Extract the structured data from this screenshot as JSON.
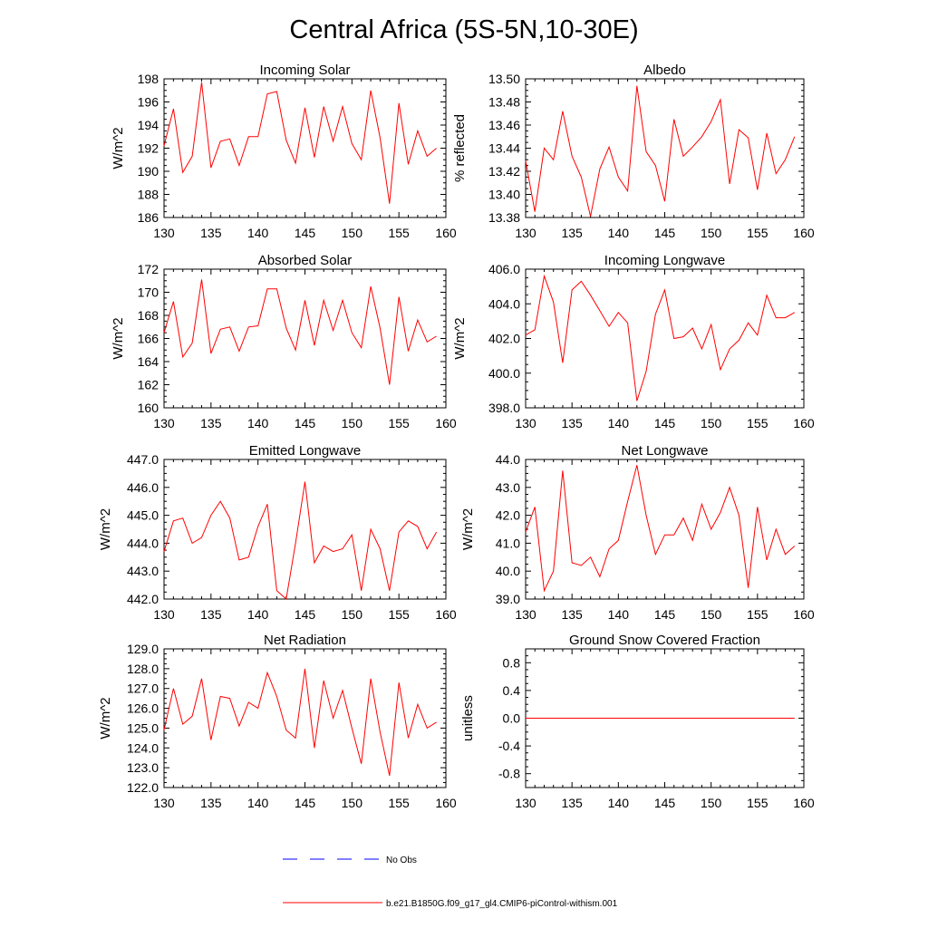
{
  "figure": {
    "title": "Central Africa (5S-5N,10-30E)",
    "series_color": "#ff0000",
    "noobs_color": "#0000ff",
    "legend": [
      {
        "label": "No Obs",
        "style": "dashed",
        "color": "#0000ff"
      },
      {
        "label": "b.e21.B1850G.f09_g17_gl4.CMIP6-piControl-withism.001",
        "style": "solid",
        "color": "#ff0000"
      }
    ]
  },
  "chart_data": [
    {
      "type": "line",
      "title": "Incoming Solar",
      "xlabel": "",
      "ylabel": "W/m^2",
      "xlim": [
        130,
        160
      ],
      "ylim": [
        186,
        198
      ],
      "xticks": [
        "130",
        "135",
        "140",
        "145",
        "150",
        "155",
        "160"
      ],
      "yticks": [
        "186",
        "188",
        "190",
        "192",
        "194",
        "196",
        "198"
      ],
      "x": [
        130,
        131,
        132,
        133,
        134,
        135,
        136,
        137,
        138,
        139,
        140,
        141,
        142,
        143,
        144,
        145,
        146,
        147,
        148,
        149,
        150,
        151,
        152,
        153,
        154,
        155,
        156,
        157,
        158,
        159
      ],
      "y": [
        192.2,
        195.4,
        189.9,
        191.3,
        197.7,
        190.3,
        192.6,
        192.8,
        190.5,
        193.0,
        193.0,
        196.7,
        196.9,
        192.7,
        190.7,
        195.5,
        191.2,
        195.6,
        192.6,
        195.6,
        192.4,
        191.0,
        197.0,
        192.9,
        187.2,
        195.9,
        190.6,
        193.5,
        191.3,
        192.0
      ],
      "grid": false,
      "legend": "none"
    },
    {
      "type": "line",
      "title": "Albedo",
      "xlabel": "",
      "ylabel": "% reflected",
      "xlim": [
        130,
        160
      ],
      "ylim": [
        13.38,
        13.5
      ],
      "xticks": [
        "130",
        "135",
        "140",
        "145",
        "150",
        "155",
        "160"
      ],
      "yticks": [
        "13.38",
        "13.40",
        "13.42",
        "13.44",
        "13.46",
        "13.48",
        "13.50"
      ],
      "x": [
        130,
        131,
        132,
        133,
        134,
        135,
        136,
        137,
        138,
        139,
        140,
        141,
        142,
        143,
        144,
        145,
        146,
        147,
        148,
        149,
        150,
        151,
        152,
        153,
        154,
        155,
        156,
        157,
        158,
        159
      ],
      "y": [
        13.429,
        13.385,
        13.44,
        13.43,
        13.472,
        13.433,
        13.415,
        13.381,
        13.422,
        13.441,
        13.415,
        13.403,
        13.494,
        13.437,
        13.425,
        13.394,
        13.465,
        13.433,
        13.441,
        13.45,
        13.463,
        13.482,
        13.409,
        13.456,
        13.449,
        13.404,
        13.453,
        13.418,
        13.43,
        13.45
      ],
      "grid": false,
      "legend": "none"
    },
    {
      "type": "line",
      "title": "Absorbed Solar",
      "xlabel": "",
      "ylabel": "W/m^2",
      "xlim": [
        130,
        160
      ],
      "ylim": [
        160,
        172
      ],
      "xticks": [
        "130",
        "135",
        "140",
        "145",
        "150",
        "155",
        "160"
      ],
      "yticks": [
        "160",
        "162",
        "164",
        "166",
        "168",
        "170",
        "172"
      ],
      "x": [
        130,
        131,
        132,
        133,
        134,
        135,
        136,
        137,
        138,
        139,
        140,
        141,
        142,
        143,
        144,
        145,
        146,
        147,
        148,
        149,
        150,
        151,
        152,
        153,
        154,
        155,
        156,
        157,
        158,
        159
      ],
      "y": [
        166.5,
        169.2,
        164.4,
        165.6,
        171.1,
        164.7,
        166.8,
        167.0,
        164.9,
        167.0,
        167.1,
        170.3,
        170.3,
        166.9,
        165.0,
        169.3,
        165.4,
        169.3,
        166.7,
        169.3,
        166.5,
        165.2,
        170.5,
        166.9,
        162.0,
        169.6,
        164.9,
        167.6,
        165.7,
        166.2
      ],
      "grid": false,
      "legend": "none"
    },
    {
      "type": "line",
      "title": "Incoming Longwave",
      "xlabel": "",
      "ylabel": "W/m^2",
      "xlim": [
        130,
        160
      ],
      "ylim": [
        398,
        406
      ],
      "xticks": [
        "130",
        "135",
        "140",
        "145",
        "150",
        "155",
        "160"
      ],
      "yticks": [
        "398.0",
        "400.0",
        "402.0",
        "404.0",
        "406.0"
      ],
      "x": [
        130,
        131,
        132,
        133,
        134,
        135,
        136,
        137,
        138,
        139,
        140,
        141,
        142,
        143,
        144,
        145,
        146,
        147,
        148,
        149,
        150,
        151,
        152,
        153,
        154,
        155,
        156,
        157,
        158,
        159
      ],
      "y": [
        402.2,
        402.5,
        405.6,
        404.1,
        400.6,
        404.8,
        405.3,
        404.5,
        403.6,
        402.7,
        403.5,
        402.9,
        398.4,
        400.1,
        403.4,
        404.8,
        402.0,
        402.1,
        402.6,
        401.4,
        402.8,
        400.2,
        401.4,
        401.9,
        402.9,
        402.2,
        404.5,
        403.2,
        403.2,
        403.5
      ],
      "grid": false,
      "legend": "none"
    },
    {
      "type": "line",
      "title": "Emitted Longwave",
      "xlabel": "",
      "ylabel": "W/m^2",
      "xlim": [
        130,
        160
      ],
      "ylim": [
        442,
        447
      ],
      "xticks": [
        "130",
        "135",
        "140",
        "145",
        "150",
        "155",
        "160"
      ],
      "yticks": [
        "442.0",
        "443.0",
        "444.0",
        "445.0",
        "446.0",
        "447.0"
      ],
      "x": [
        130,
        131,
        132,
        133,
        134,
        135,
        136,
        137,
        138,
        139,
        140,
        141,
        142,
        143,
        144,
        145,
        146,
        147,
        148,
        149,
        150,
        151,
        152,
        153,
        154,
        155,
        156,
        157,
        158,
        159
      ],
      "y": [
        443.7,
        444.8,
        444.9,
        444.0,
        444.2,
        445.0,
        445.5,
        444.9,
        443.4,
        443.5,
        444.6,
        445.4,
        442.3,
        442.0,
        444.0,
        446.2,
        443.3,
        443.9,
        443.7,
        443.8,
        444.3,
        442.3,
        444.5,
        443.8,
        442.3,
        444.4,
        444.8,
        444.6,
        443.8,
        444.4
      ],
      "grid": false,
      "legend": "none"
    },
    {
      "type": "line",
      "title": "Net Longwave",
      "xlabel": "",
      "ylabel": "W/m^2",
      "xlim": [
        130,
        160
      ],
      "ylim": [
        39,
        44
      ],
      "xticks": [
        "130",
        "135",
        "140",
        "145",
        "150",
        "155",
        "160"
      ],
      "yticks": [
        "39.0",
        "40.0",
        "41.0",
        "42.0",
        "43.0",
        "44.0"
      ],
      "x": [
        130,
        131,
        132,
        133,
        134,
        135,
        136,
        137,
        138,
        139,
        140,
        141,
        142,
        143,
        144,
        145,
        146,
        147,
        148,
        149,
        150,
        151,
        152,
        153,
        154,
        155,
        156,
        157,
        158,
        159
      ],
      "y": [
        41.4,
        42.3,
        39.3,
        40.0,
        43.6,
        40.3,
        40.2,
        40.5,
        39.8,
        40.8,
        41.1,
        42.5,
        43.8,
        42.0,
        40.6,
        41.3,
        41.3,
        41.9,
        41.1,
        42.4,
        41.5,
        42.1,
        43.0,
        42.0,
        39.4,
        42.3,
        40.4,
        41.5,
        40.6,
        40.9
      ],
      "grid": false,
      "legend": "none"
    },
    {
      "type": "line",
      "title": "Net Radiation",
      "xlabel": "",
      "ylabel": "W/m^2",
      "xlim": [
        130,
        160
      ],
      "ylim": [
        122,
        129
      ],
      "xticks": [
        "130",
        "135",
        "140",
        "145",
        "150",
        "155",
        "160"
      ],
      "yticks": [
        "122.0",
        "123.0",
        "124.0",
        "125.0",
        "126.0",
        "127.0",
        "128.0",
        "129.0"
      ],
      "x": [
        130,
        131,
        132,
        133,
        134,
        135,
        136,
        137,
        138,
        139,
        140,
        141,
        142,
        143,
        144,
        145,
        146,
        147,
        148,
        149,
        150,
        151,
        152,
        153,
        154,
        155,
        156,
        157,
        158,
        159
      ],
      "y": [
        124.9,
        127.0,
        125.2,
        125.6,
        127.5,
        124.4,
        126.6,
        126.5,
        125.1,
        126.3,
        126.0,
        127.8,
        126.6,
        124.9,
        124.5,
        128.0,
        124.0,
        127.4,
        125.5,
        126.9,
        125.0,
        123.2,
        127.5,
        124.8,
        122.6,
        127.3,
        124.5,
        126.2,
        125.0,
        125.3
      ],
      "grid": false,
      "legend": "none"
    },
    {
      "type": "line",
      "title": "Ground Snow Covered Fraction",
      "xlabel": "",
      "ylabel": "unitless",
      "xlim": [
        130,
        160
      ],
      "ylim": [
        -1.0,
        1.0
      ],
      "xticks": [
        "130",
        "135",
        "140",
        "145",
        "150",
        "155",
        "160"
      ],
      "yticks": [
        "-0.8",
        "-0.4",
        "0.0",
        "0.4",
        "0.8"
      ],
      "ytick_values": [
        -0.8,
        -0.4,
        0.0,
        0.4,
        0.8
      ],
      "x": [
        130,
        159
      ],
      "y": [
        0.0,
        0.0
      ],
      "grid": false,
      "legend": "none"
    }
  ]
}
